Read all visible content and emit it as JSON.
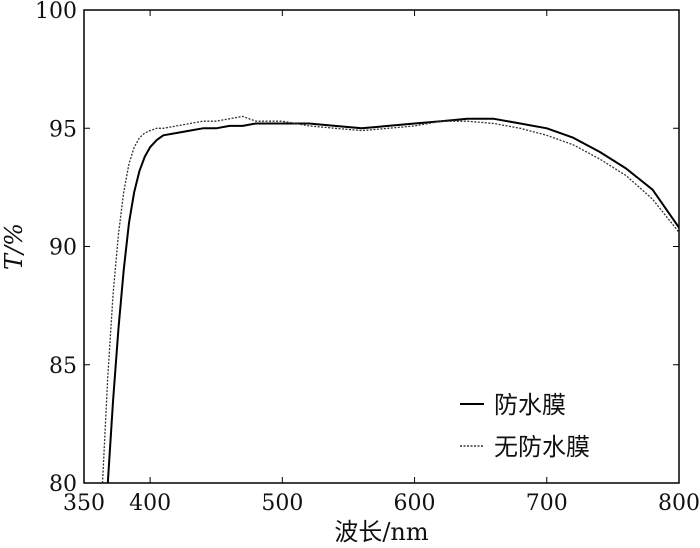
{
  "chart_data": {
    "type": "line",
    "title": "",
    "xlabel": "波长/nm",
    "ylabel": "T/%",
    "xlim": [
      350,
      800
    ],
    "ylim": [
      80,
      100
    ],
    "xticks": [
      350,
      400,
      500,
      600,
      700,
      800
    ],
    "yticks": [
      80,
      85,
      90,
      95,
      100
    ],
    "grid": false,
    "legend_position": "bottom-right",
    "series": [
      {
        "name": "防水膜",
        "style": "solid",
        "color": "#000000",
        "x": [
          368,
          372,
          376,
          380,
          384,
          388,
          392,
          396,
          400,
          405,
          410,
          420,
          430,
          440,
          450,
          460,
          470,
          480,
          490,
          500,
          520,
          540,
          560,
          580,
          600,
          620,
          640,
          660,
          680,
          700,
          720,
          740,
          760,
          780,
          790,
          800
        ],
        "y": [
          80,
          83.5,
          86.5,
          89.0,
          91.0,
          92.3,
          93.2,
          93.8,
          94.2,
          94.5,
          94.7,
          94.8,
          94.9,
          95.0,
          95.0,
          95.1,
          95.1,
          95.2,
          95.2,
          95.2,
          95.2,
          95.1,
          95.0,
          95.1,
          95.2,
          95.3,
          95.4,
          95.4,
          95.2,
          95.0,
          94.6,
          94.0,
          93.3,
          92.4,
          91.6,
          90.8
        ]
      },
      {
        "name": "无防水膜",
        "style": "dotted",
        "color": "#333333",
        "x": [
          364,
          368,
          372,
          376,
          380,
          384,
          388,
          392,
          396,
          400,
          405,
          410,
          420,
          430,
          440,
          450,
          460,
          470,
          480,
          490,
          500,
          520,
          540,
          560,
          580,
          600,
          620,
          640,
          660,
          680,
          700,
          720,
          740,
          760,
          780,
          790,
          800
        ],
        "y": [
          80,
          84.5,
          88.0,
          90.5,
          92.3,
          93.5,
          94.2,
          94.6,
          94.8,
          94.9,
          95.0,
          95.0,
          95.1,
          95.2,
          95.3,
          95.3,
          95.4,
          95.5,
          95.3,
          95.3,
          95.3,
          95.1,
          95.0,
          94.9,
          95.0,
          95.1,
          95.3,
          95.3,
          95.2,
          95.0,
          94.7,
          94.3,
          93.7,
          93.0,
          92.0,
          91.3,
          90.6
        ]
      }
    ]
  }
}
